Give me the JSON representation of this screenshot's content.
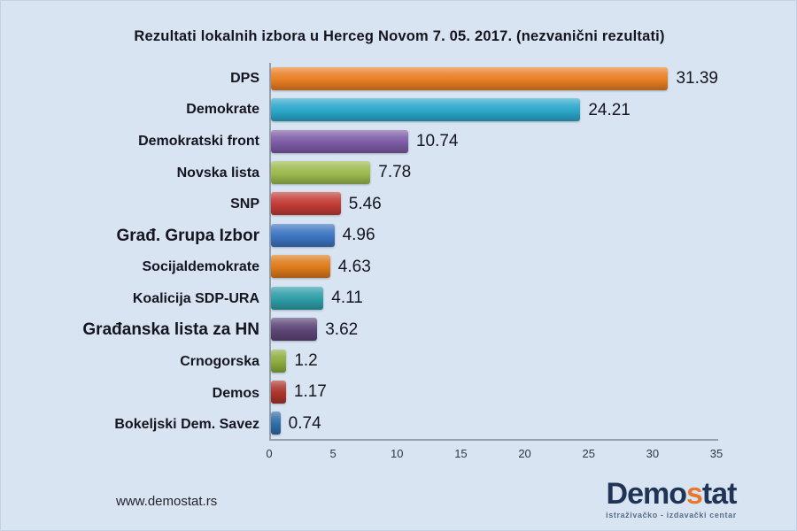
{
  "chart_data": {
    "type": "bar",
    "orientation": "horizontal",
    "title": "Rezultati lokalnih izbora u Herceg Novom 7. 05. 2017. (nezvanični rezultati)",
    "categories": [
      "DPS",
      "Demokrate",
      "Demokratski front",
      "Novska lista",
      "SNP",
      "Građ. Grupa Izbor",
      "Socijaldemokrate",
      "Koalicija SDP-URA",
      "Građanska lista za HN",
      "Crnogorska",
      "Demos",
      "Bokeljski Dem. Savez"
    ],
    "values": [
      31.39,
      24.21,
      10.74,
      7.78,
      5.46,
      4.96,
      4.63,
      4.11,
      3.62,
      1.2,
      1.17,
      0.74
    ],
    "bar_colors": [
      "#E87E23",
      "#2BA7CA",
      "#7C5BA5",
      "#9CBA4E",
      "#C23B35",
      "#3C74C0",
      "#DD7A1A",
      "#2E9DA7",
      "#5D4677",
      "#8CAC3C",
      "#AC342C",
      "#2E6DA8"
    ],
    "emphasized_categories": [
      "Građ. Grupa Izbor",
      "Građanska lista za HN"
    ],
    "xlabel": "",
    "ylabel": "",
    "xlim": [
      0,
      35
    ],
    "x_ticks": [
      0,
      5,
      10,
      15,
      20,
      25,
      30,
      35
    ],
    "grid": false,
    "legend": false,
    "value_labels": "end of bar"
  },
  "footer": {
    "website": "www.demostat.rs",
    "logo": {
      "part1": "Demo",
      "accent": "s",
      "part2": "tat",
      "tagline": "istraživačko - izdavački centar",
      "navy": "#1F3456",
      "orange": "#E8762C"
    }
  },
  "colors": {
    "background": "#D9E4F2",
    "axis": "#97A1AE",
    "text": "#15151F"
  }
}
